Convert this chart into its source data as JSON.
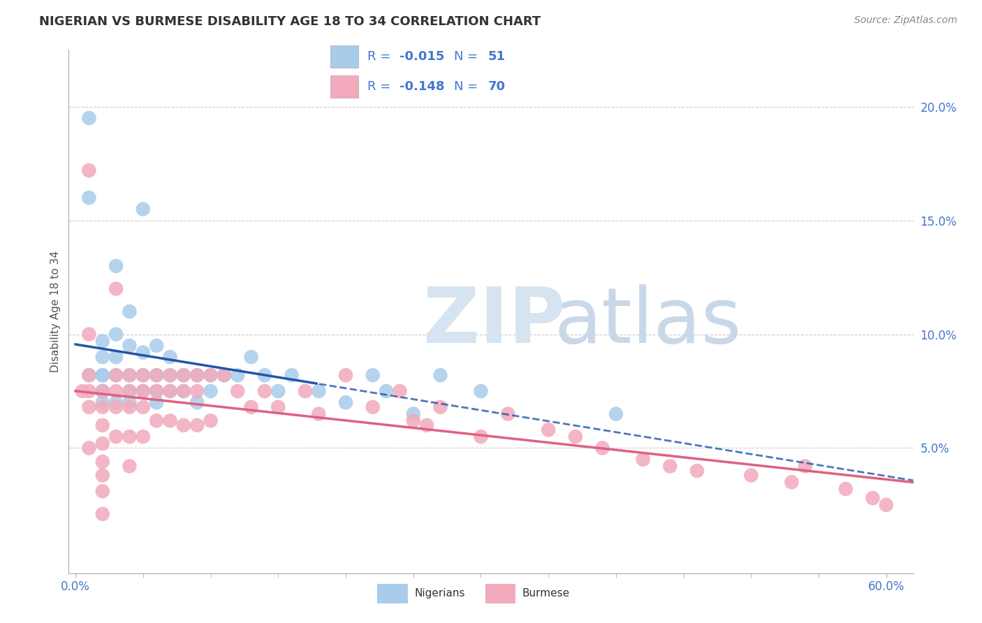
{
  "title": "NIGERIAN VS BURMESE DISABILITY AGE 18 TO 34 CORRELATION CHART",
  "source_text": "Source: ZipAtlas.com",
  "ylabel": "Disability Age 18 to 34",
  "xlim": [
    -0.005,
    0.62
  ],
  "ylim": [
    -0.005,
    0.225
  ],
  "ytick_positions": [
    0.05,
    0.1,
    0.15,
    0.2
  ],
  "ytick_labels": [
    "5.0%",
    "10.0%",
    "15.0%",
    "20.0%"
  ],
  "blue_R": -0.015,
  "blue_N": 51,
  "pink_R": -0.148,
  "pink_N": 70,
  "blue_color": "#A8CCEA",
  "pink_color": "#F2AABC",
  "blue_line_color": "#2255AA",
  "pink_line_color": "#E06080",
  "legend_text_color": "#4477CC",
  "background_color": "#FFFFFF",
  "grid_color": "#CCCCCC",
  "axis_color": "#AAAAAA",
  "title_color": "#333333",
  "source_color": "#888888",
  "watermark_zip_color": "#D5E4F0",
  "watermark_atlas_color": "#C8D8E8",
  "blue_x": [
    0.01,
    0.01,
    0.01,
    0.02,
    0.02,
    0.02,
    0.02,
    0.02,
    0.02,
    0.02,
    0.03,
    0.03,
    0.03,
    0.03,
    0.03,
    0.04,
    0.04,
    0.04,
    0.04,
    0.04,
    0.05,
    0.05,
    0.05,
    0.05,
    0.06,
    0.06,
    0.06,
    0.06,
    0.07,
    0.07,
    0.07,
    0.08,
    0.08,
    0.09,
    0.09,
    0.1,
    0.1,
    0.11,
    0.12,
    0.13,
    0.14,
    0.15,
    0.16,
    0.18,
    0.2,
    0.22,
    0.23,
    0.25,
    0.27,
    0.3,
    0.4
  ],
  "blue_y": [
    0.082,
    0.195,
    0.16,
    0.097,
    0.09,
    0.082,
    0.075,
    0.082,
    0.075,
    0.07,
    0.13,
    0.1,
    0.09,
    0.082,
    0.07,
    0.11,
    0.095,
    0.082,
    0.075,
    0.07,
    0.155,
    0.092,
    0.082,
    0.075,
    0.095,
    0.082,
    0.075,
    0.07,
    0.09,
    0.082,
    0.075,
    0.082,
    0.075,
    0.082,
    0.07,
    0.082,
    0.075,
    0.082,
    0.082,
    0.09,
    0.082,
    0.075,
    0.082,
    0.075,
    0.07,
    0.082,
    0.075,
    0.065,
    0.082,
    0.075,
    0.065
  ],
  "pink_x": [
    0.005,
    0.01,
    0.01,
    0.01,
    0.01,
    0.01,
    0.01,
    0.02,
    0.02,
    0.02,
    0.02,
    0.02,
    0.02,
    0.02,
    0.02,
    0.03,
    0.03,
    0.03,
    0.03,
    0.03,
    0.04,
    0.04,
    0.04,
    0.04,
    0.04,
    0.05,
    0.05,
    0.05,
    0.05,
    0.06,
    0.06,
    0.06,
    0.07,
    0.07,
    0.07,
    0.08,
    0.08,
    0.08,
    0.09,
    0.09,
    0.09,
    0.1,
    0.1,
    0.11,
    0.12,
    0.13,
    0.14,
    0.15,
    0.17,
    0.18,
    0.2,
    0.22,
    0.24,
    0.25,
    0.26,
    0.27,
    0.3,
    0.32,
    0.35,
    0.37,
    0.39,
    0.42,
    0.44,
    0.46,
    0.5,
    0.53,
    0.54,
    0.57,
    0.59,
    0.6
  ],
  "pink_y": [
    0.075,
    0.172,
    0.1,
    0.082,
    0.075,
    0.068,
    0.05,
    0.075,
    0.068,
    0.06,
    0.052,
    0.044,
    0.038,
    0.031,
    0.021,
    0.12,
    0.082,
    0.075,
    0.068,
    0.055,
    0.082,
    0.075,
    0.068,
    0.055,
    0.042,
    0.082,
    0.075,
    0.068,
    0.055,
    0.082,
    0.075,
    0.062,
    0.082,
    0.075,
    0.062,
    0.082,
    0.075,
    0.06,
    0.082,
    0.075,
    0.06,
    0.082,
    0.062,
    0.082,
    0.075,
    0.068,
    0.075,
    0.068,
    0.075,
    0.065,
    0.082,
    0.068,
    0.075,
    0.062,
    0.06,
    0.068,
    0.055,
    0.065,
    0.058,
    0.055,
    0.05,
    0.045,
    0.042,
    0.04,
    0.038,
    0.035,
    0.042,
    0.032,
    0.028,
    0.025
  ]
}
